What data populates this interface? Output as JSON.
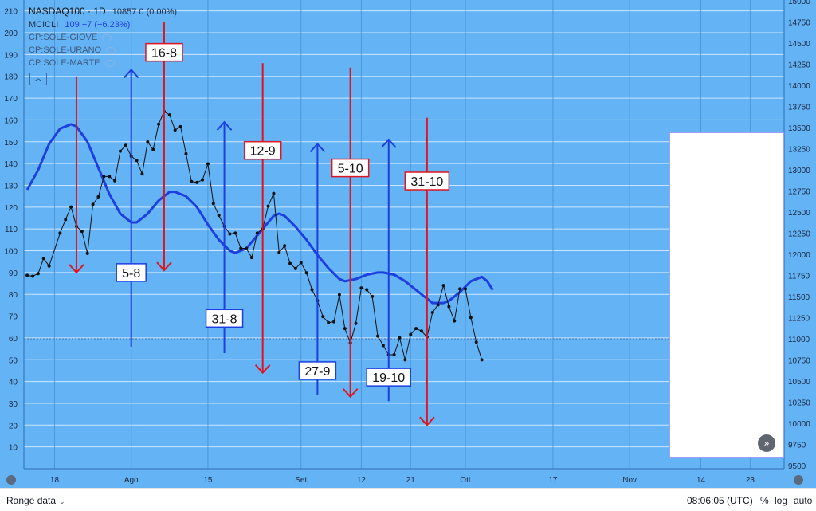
{
  "legend": {
    "symbol_line": "NASDAQ100 · 1D",
    "symbol_values": "10857  0 (0.00%)",
    "indicator_name": "MCICLI",
    "indicator_values": "109  −7 (−6.23%)",
    "overlays": [
      "CP:SOLE-GIOVE",
      "CP:SOLE-URANO",
      "CP:SOLE-MARTE"
    ],
    "collapse_icon": "chevron-up-icon"
  },
  "colors": {
    "background": "#63b3f5",
    "price_line": "#111111",
    "cycle_line": "#1e3fe0",
    "up_arrow": "#1e3fe0",
    "down_arrow": "#e0141e"
  },
  "bottom_bar": {
    "range_label": "Range data",
    "time": "08:06:05 (UTC)",
    "percent": "%",
    "log": "log",
    "auto": "auto"
  },
  "chart_data": {
    "type": "line",
    "left_axis": {
      "ticks": [
        10,
        20,
        30,
        40,
        50,
        60,
        70,
        80,
        90,
        100,
        110,
        120,
        130,
        140,
        150,
        160,
        170,
        180,
        190,
        200,
        210
      ],
      "range": [
        0,
        215
      ]
    },
    "right_axis": {
      "ticks": [
        "15000",
        "14750",
        "14500",
        "14250",
        "14000",
        "13750",
        "13500",
        "13250",
        "13000",
        "12750",
        "12500",
        "12250",
        "12000",
        "11750",
        "11500",
        "11250",
        "11000",
        "10750",
        "10500",
        "10250",
        "10000",
        "9750",
        "9500"
      ],
      "range": [
        9460,
        15010
      ]
    },
    "x_ticks": [
      {
        "label": "18",
        "day": 0
      },
      {
        "label": "Ago",
        "day": 14
      },
      {
        "label": "15",
        "day": 28
      },
      {
        "label": "Set",
        "day": 45
      },
      {
        "label": "12",
        "day": 56
      },
      {
        "label": "21",
        "day": 65
      },
      {
        "label": "Ott",
        "day": 75
      },
      {
        "label": "17",
        "day": 91
      },
      {
        "label": "Nov",
        "day": 105
      },
      {
        "label": "14",
        "day": 118
      },
      {
        "label": "23",
        "day": 127
      }
    ],
    "x_day_range": [
      -5.6,
      133.2
    ],
    "series": [
      {
        "name": "NASDAQ100",
        "axis": "right",
        "points": [
          [
            -5,
            11750
          ],
          [
            -4,
            11740
          ],
          [
            -3,
            11770
          ],
          [
            -2,
            11950
          ],
          [
            -1,
            11860
          ],
          [
            1,
            12250
          ],
          [
            2,
            12410
          ],
          [
            3,
            12560
          ],
          [
            4,
            12330
          ],
          [
            5,
            12270
          ],
          [
            6,
            12010
          ],
          [
            7,
            12590
          ],
          [
            8,
            12680
          ],
          [
            9,
            12920
          ],
          [
            10,
            12920
          ],
          [
            11,
            12870
          ],
          [
            12,
            13220
          ],
          [
            13,
            13290
          ],
          [
            14,
            13160
          ],
          [
            15,
            13110
          ],
          [
            16,
            12950
          ],
          [
            17,
            13330
          ],
          [
            18,
            13240
          ],
          [
            19,
            13540
          ],
          [
            20,
            13690
          ],
          [
            21,
            13650
          ],
          [
            22,
            13470
          ],
          [
            23,
            13510
          ],
          [
            24,
            13190
          ],
          [
            25,
            12860
          ],
          [
            26,
            12850
          ],
          [
            27,
            12880
          ],
          [
            28,
            13070
          ],
          [
            29,
            12600
          ],
          [
            30,
            12460
          ],
          [
            31,
            12330
          ],
          [
            32,
            12240
          ],
          [
            33,
            12250
          ],
          [
            34,
            12070
          ],
          [
            35,
            12070
          ],
          [
            36,
            11960
          ],
          [
            37,
            12250
          ],
          [
            38,
            12300
          ],
          [
            39,
            12570
          ],
          [
            40,
            12720
          ],
          [
            41,
            12020
          ],
          [
            42,
            12100
          ],
          [
            43,
            11890
          ],
          [
            44,
            11830
          ],
          [
            45,
            11900
          ],
          [
            46,
            11780
          ],
          [
            47,
            11580
          ],
          [
            48,
            11450
          ],
          [
            49,
            11260
          ],
          [
            50,
            11190
          ],
          [
            51,
            11200
          ],
          [
            52,
            11520
          ],
          [
            53,
            11120
          ],
          [
            54,
            10950
          ],
          [
            55,
            11180
          ],
          [
            56,
            11600
          ],
          [
            57,
            11580
          ],
          [
            58,
            11500
          ],
          [
            59,
            11030
          ],
          [
            60,
            10920
          ],
          [
            61,
            10810
          ],
          [
            62,
            10810
          ],
          [
            63,
            11010
          ],
          [
            64,
            10750
          ],
          [
            65,
            11050
          ],
          [
            66,
            11120
          ],
          [
            67,
            11090
          ],
          [
            68,
            11020
          ],
          [
            69,
            11310
          ],
          [
            70,
            11400
          ],
          [
            71,
            11630
          ],
          [
            72,
            11380
          ],
          [
            73,
            11210
          ],
          [
            74,
            11590
          ],
          [
            75,
            11590
          ],
          [
            76,
            11250
          ],
          [
            77,
            10960
          ],
          [
            78,
            10750
          ]
        ]
      },
      {
        "name": "MCICLI",
        "axis": "left",
        "points": [
          [
            -5,
            128
          ],
          [
            -3,
            137
          ],
          [
            -1,
            149
          ],
          [
            1,
            156
          ],
          [
            3,
            158
          ],
          [
            4,
            157
          ],
          [
            6,
            150
          ],
          [
            8,
            138
          ],
          [
            10,
            126
          ],
          [
            12,
            117
          ],
          [
            14,
            113
          ],
          [
            15,
            113
          ],
          [
            17,
            117
          ],
          [
            19,
            123
          ],
          [
            21,
            127
          ],
          [
            22,
            127
          ],
          [
            24,
            125
          ],
          [
            26,
            120
          ],
          [
            28,
            112
          ],
          [
            30,
            105
          ],
          [
            32,
            100
          ],
          [
            33,
            99
          ],
          [
            35,
            101
          ],
          [
            37,
            107
          ],
          [
            39,
            113
          ],
          [
            40,
            116
          ],
          [
            41,
            117
          ],
          [
            42,
            116
          ],
          [
            44,
            111
          ],
          [
            46,
            105
          ],
          [
            48,
            98
          ],
          [
            50,
            92
          ],
          [
            52,
            87
          ],
          [
            53,
            86
          ],
          [
            55,
            87
          ],
          [
            57,
            89
          ],
          [
            59,
            90
          ],
          [
            60,
            90
          ],
          [
            62,
            89
          ],
          [
            64,
            86
          ],
          [
            66,
            82
          ],
          [
            68,
            78
          ],
          [
            69,
            76
          ],
          [
            71,
            76
          ],
          [
            72,
            77
          ],
          [
            74,
            81
          ],
          [
            76,
            86
          ],
          [
            78,
            88
          ],
          [
            79,
            86
          ],
          [
            80,
            82
          ]
        ]
      }
    ],
    "annotations": [
      {
        "kind": "down",
        "day": 4,
        "top": 180,
        "bottom": 90
      },
      {
        "kind": "up",
        "day": 14,
        "top": 183,
        "bottom": 56,
        "label": "5-8",
        "label_value": 90
      },
      {
        "kind": "down",
        "day": 20,
        "top": 205,
        "bottom": 91,
        "label": "16-8",
        "label_value": 191
      },
      {
        "kind": "up",
        "day": 31,
        "top": 159,
        "bottom": 53,
        "label": "31-8",
        "label_value": 69
      },
      {
        "kind": "down",
        "day": 38,
        "top": 186,
        "bottom": 44,
        "label": "12-9",
        "label_value": 146
      },
      {
        "kind": "up",
        "day": 48,
        "top": 149,
        "bottom": 34,
        "label": "27-9",
        "label_value": 45
      },
      {
        "kind": "down",
        "day": 54,
        "top": 184,
        "bottom": 33,
        "label": "5-10",
        "label_value": 138
      },
      {
        "kind": "up",
        "day": 61,
        "top": 151,
        "bottom": 31,
        "label": "19-10",
        "label_value": 42
      },
      {
        "kind": "down",
        "day": 68,
        "top": 161,
        "bottom": 20,
        "label": "31-10",
        "label_value": 132
      }
    ]
  }
}
